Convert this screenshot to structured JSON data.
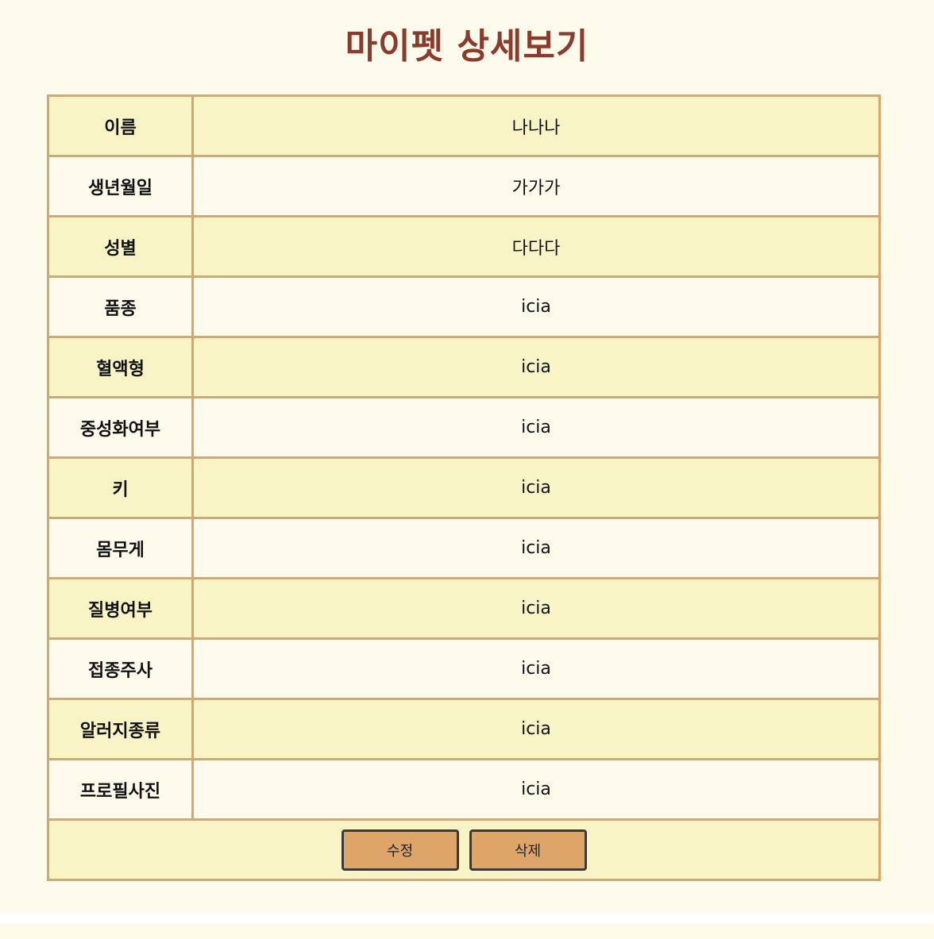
{
  "page": {
    "title": "마이펫 상세보기"
  },
  "details": [
    {
      "label": "이름",
      "value": "나나나"
    },
    {
      "label": "생년월일",
      "value": "가가가"
    },
    {
      "label": "성별",
      "value": "다다다"
    },
    {
      "label": "품종",
      "value": "icia"
    },
    {
      "label": "혈액형",
      "value": "icia"
    },
    {
      "label": "중성화여부",
      "value": "icia"
    },
    {
      "label": "키",
      "value": "icia"
    },
    {
      "label": "몸무게",
      "value": "icia"
    },
    {
      "label": "질병여부",
      "value": "icia"
    },
    {
      "label": "접종주사",
      "value": "icia"
    },
    {
      "label": "알러지종류",
      "value": "icia"
    },
    {
      "label": "프로필사진",
      "value": "icia"
    }
  ],
  "actions": {
    "edit_label": "수정",
    "delete_label": "삭제"
  },
  "colors": {
    "title": "#8b3a2b",
    "border": "#dba56a",
    "row_alt": "#f8f4c6",
    "row": "#fdfbec",
    "button": "#dea569"
  }
}
